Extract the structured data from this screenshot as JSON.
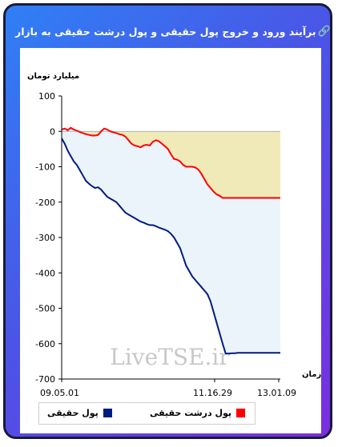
{
  "header": {
    "title": "برآیند ورود و خروج پول حقیقی و پول درشت حقیقی به بازار",
    "info_icon": "info-icon",
    "link_icon": "link-icon"
  },
  "watermark": "LiveTSE.ir",
  "colors": {
    "series1": "#001a80",
    "series2": "#ff0000",
    "area1": "#eaf4fa",
    "area2": "#f0eab8"
  },
  "chart_data": {
    "type": "area",
    "ylabel": "میلیارد تومان",
    "xlabel": "زمان",
    "ylim": [
      -700,
      100
    ],
    "yticks": [
      100,
      0,
      -100,
      -200,
      -300,
      -400,
      -500,
      -600,
      -700
    ],
    "xticks": [
      "09.05.01",
      "11.16.29",
      "13.01.09"
    ],
    "x": [
      0,
      1,
      2,
      3,
      4,
      5,
      6,
      7,
      8,
      9,
      10,
      11,
      12,
      13,
      14,
      15,
      16,
      17,
      18,
      19,
      20,
      21,
      22,
      23,
      24,
      25,
      26,
      27,
      28,
      29,
      30,
      31,
      32,
      33,
      34,
      35,
      36,
      37,
      38,
      39,
      40,
      41,
      42,
      43,
      44,
      45,
      46,
      47,
      48,
      49,
      50,
      51,
      52,
      53,
      54,
      55,
      56,
      57,
      58,
      59,
      60,
      61,
      62,
      63,
      64,
      65,
      66,
      67,
      68,
      69,
      70,
      71,
      72
    ],
    "series": [
      {
        "name": "پول حقیقی",
        "values": [
          -20,
          -35,
          -55,
          -70,
          -85,
          -95,
          -110,
          -125,
          -140,
          -148,
          -155,
          -160,
          -158,
          -165,
          -175,
          -185,
          -190,
          -195,
          -200,
          -210,
          -220,
          -230,
          -235,
          -240,
          -245,
          -250,
          -255,
          -258,
          -262,
          -265,
          -265,
          -268,
          -272,
          -275,
          -278,
          -282,
          -290,
          -300,
          -315,
          -330,
          -355,
          -380,
          -395,
          -410,
          -420,
          -430,
          -440,
          -450,
          -460,
          -480,
          -510,
          -540,
          -570,
          -600,
          -628,
          -628,
          -627,
          -627,
          -626,
          -626,
          -626,
          -626,
          -626,
          -626,
          -626,
          -626,
          -626,
          -626,
          -626,
          -626,
          -626,
          -626,
          -626
        ]
      },
      {
        "name": "پول درشت حقیقی",
        "values": [
          5,
          8,
          3,
          10,
          5,
          2,
          -2,
          -5,
          -8,
          -10,
          -12,
          -12,
          -10,
          0,
          8,
          5,
          0,
          -3,
          -5,
          -8,
          -10,
          -15,
          -25,
          -35,
          -40,
          -42,
          -45,
          -40,
          -38,
          -40,
          -30,
          -25,
          -28,
          -35,
          -42,
          -50,
          -65,
          -78,
          -80,
          -85,
          -95,
          -100,
          -100,
          -100,
          -102,
          -108,
          -120,
          -135,
          -150,
          -160,
          -170,
          -178,
          -182,
          -188,
          -188,
          -188,
          -188,
          -188,
          -188,
          -188,
          -188,
          -188,
          -188,
          -188,
          -188,
          -188,
          -188,
          -188,
          -188,
          -188,
          -188,
          -188,
          -188
        ]
      }
    ],
    "grid": false,
    "legend_position": "bottom"
  }
}
